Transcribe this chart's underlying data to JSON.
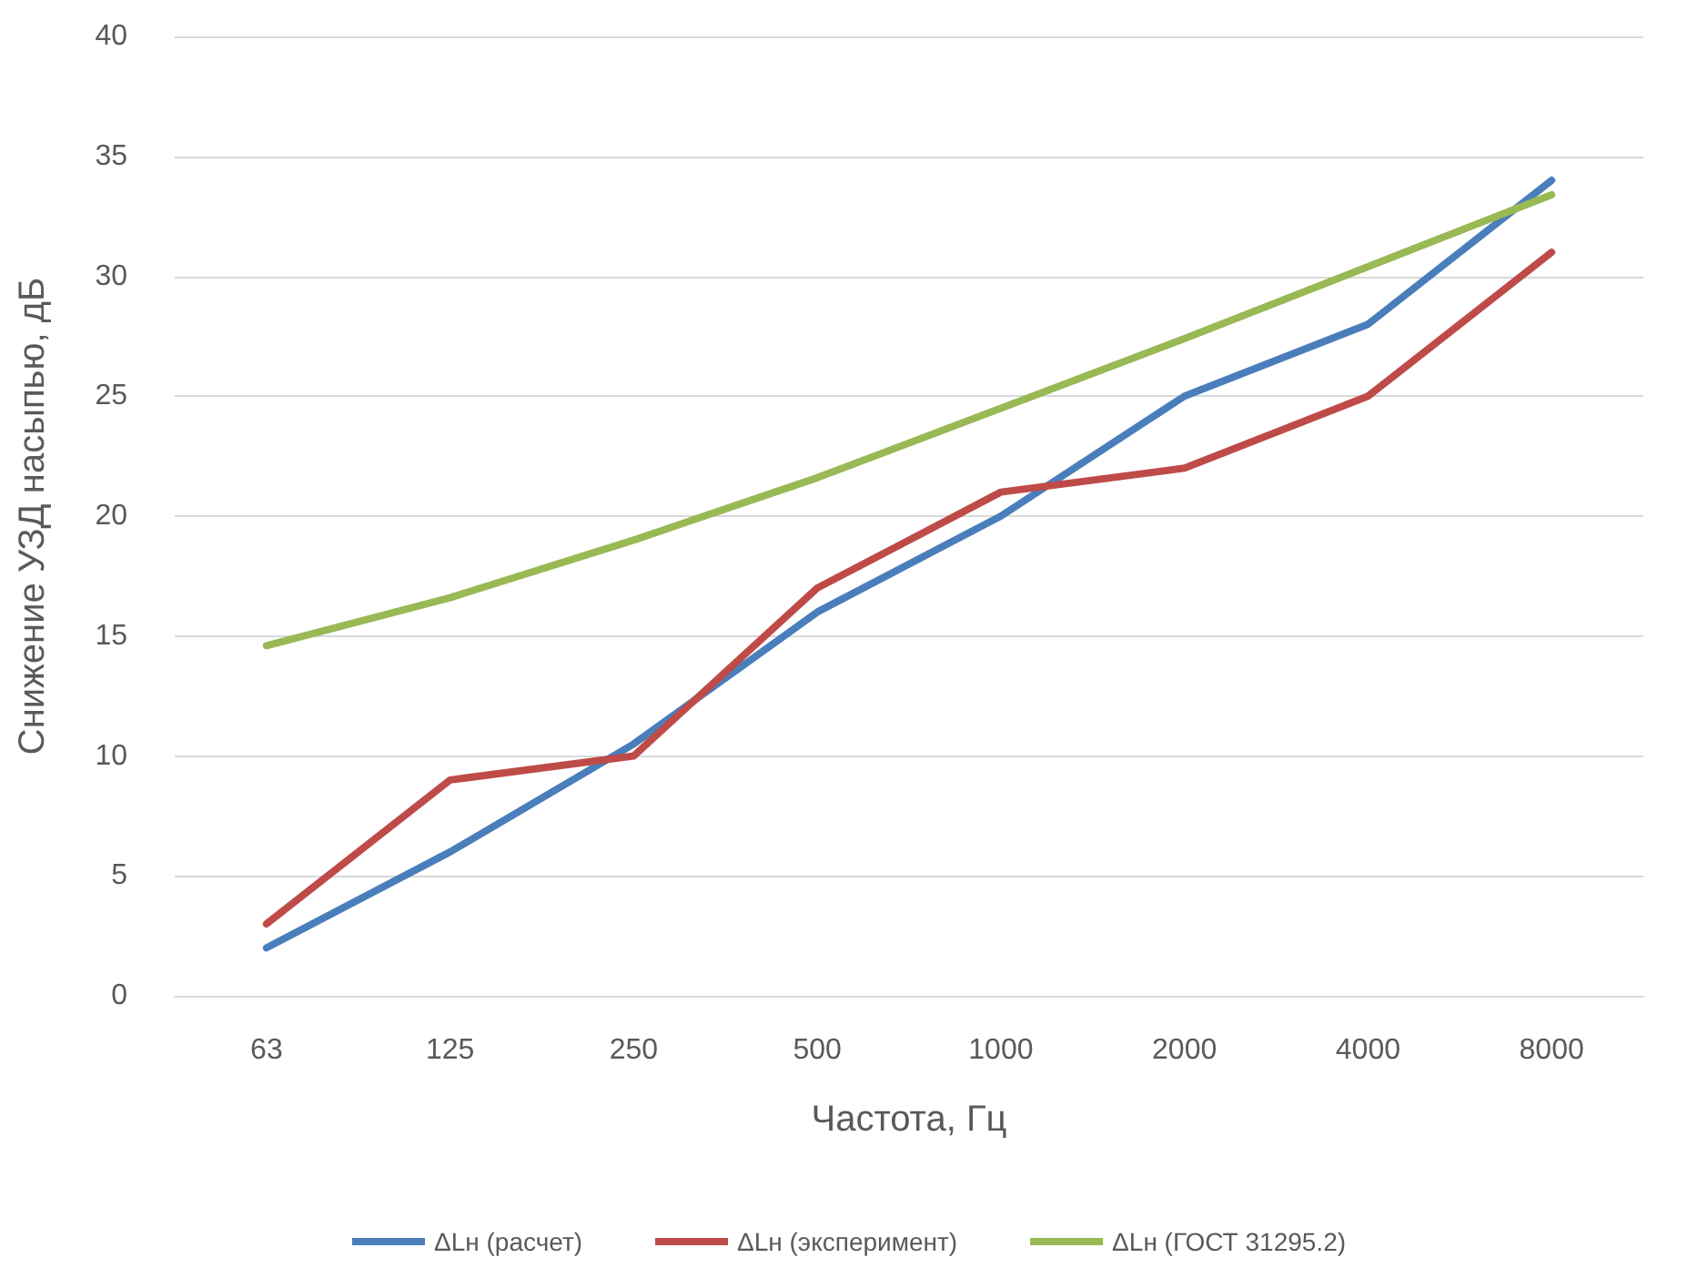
{
  "chart_data": {
    "type": "line",
    "xlabel": "Частота, Гц",
    "ylabel": "Снижение УЗД насыпью, дБ",
    "categories": [
      "63",
      "125",
      "250",
      "500",
      "1000",
      "2000",
      "4000",
      "8000"
    ],
    "series": [
      {
        "name": "ΔLн (расчет)",
        "color": "#4a7ebb",
        "values": [
          2,
          6,
          10.5,
          16,
          20,
          25,
          28,
          34
        ]
      },
      {
        "name": "ΔLн (эксперимент)",
        "color": "#be4b48",
        "values": [
          3,
          9,
          10,
          17,
          21,
          22,
          25,
          31
        ]
      },
      {
        "name": "ΔLн (ГОСТ 31295.2)",
        "color": "#98b954",
        "values": [
          14.6,
          16.6,
          19,
          21.6,
          24.5,
          27.4,
          30.4,
          33.4
        ]
      }
    ],
    "ylim": [
      0,
      40
    ],
    "yticks": [
      0,
      5,
      10,
      15,
      20,
      25,
      30,
      35,
      40
    ],
    "grid": "y",
    "legend": "bottom",
    "marker": "none",
    "line_style": "solid"
  }
}
